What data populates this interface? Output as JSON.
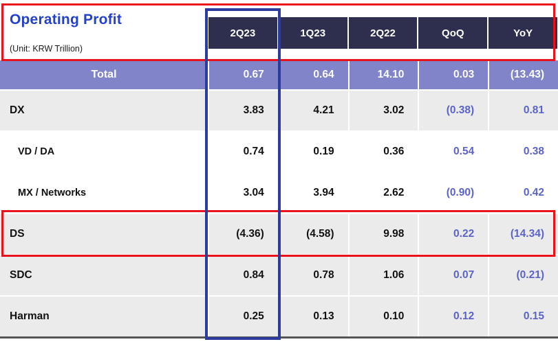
{
  "header": {
    "title": "Operating Profit",
    "unit": "(Unit: KRW Trillion)",
    "columns": [
      "2Q23",
      "1Q23",
      "2Q22",
      "QoQ",
      "YoY"
    ]
  },
  "table": {
    "rows": [
      {
        "label": "Total",
        "type": "total",
        "values": [
          "0.67",
          "0.64",
          "14.10",
          "0.03",
          "(13.43)"
        ]
      },
      {
        "label": "DX",
        "type": "division",
        "values": [
          "3.83",
          "4.21",
          "3.02",
          "(0.38)",
          "0.81"
        ]
      },
      {
        "label": "VD / DA",
        "type": "sub",
        "values": [
          "0.74",
          "0.19",
          "0.36",
          "0.54",
          "0.38"
        ]
      },
      {
        "label": "MX / Networks",
        "type": "sub",
        "values": [
          "3.04",
          "3.94",
          "2.62",
          "(0.90)",
          "0.42"
        ]
      },
      {
        "label": "DS",
        "type": "division",
        "values": [
          "(4.36)",
          "(4.58)",
          "9.98",
          "0.22",
          "(14.34)"
        ]
      },
      {
        "label": "SDC",
        "type": "division",
        "values": [
          "0.84",
          "0.78",
          "1.06",
          "0.07",
          "(0.21)"
        ]
      },
      {
        "label": "Harman",
        "type": "division",
        "values": [
          "0.25",
          "0.13",
          "0.10",
          "0.12",
          "0.15"
        ]
      }
    ]
  },
  "annotations": [
    {
      "shape": "rect",
      "color": "#e8111c",
      "target": "header-and-column-titles"
    },
    {
      "shape": "rect",
      "color": "#2c3b9e",
      "target": "2Q23-column"
    },
    {
      "shape": "rect",
      "color": "#e8111c",
      "target": "DS-row"
    }
  ],
  "colors": {
    "title_blue": "#2442c8",
    "header_bg": "#2e2e4f",
    "total_row_bg": "#8184c8",
    "division_row_bg": "#ebebeb",
    "accent_value_blue": "#5b63c8",
    "highlight_red": "#e8111c",
    "highlight_blue": "#2c3b9e"
  },
  "chart_data": {
    "type": "table",
    "title": "Operating Profit",
    "unit": "KRW Trillion",
    "columns": [
      "2Q23",
      "1Q23",
      "2Q22",
      "QoQ",
      "YoY"
    ],
    "rows": [
      {
        "label": "Total",
        "values": [
          0.67,
          0.64,
          14.1,
          0.03,
          -13.43
        ]
      },
      {
        "label": "DX",
        "values": [
          3.83,
          4.21,
          3.02,
          -0.38,
          0.81
        ]
      },
      {
        "label": "VD / DA",
        "values": [
          0.74,
          0.19,
          0.36,
          0.54,
          0.38
        ]
      },
      {
        "label": "MX / Networks",
        "values": [
          3.04,
          3.94,
          2.62,
          -0.9,
          0.42
        ]
      },
      {
        "label": "DS",
        "values": [
          -4.36,
          -4.58,
          9.98,
          0.22,
          -14.34
        ]
      },
      {
        "label": "SDC",
        "values": [
          0.84,
          0.78,
          1.06,
          0.07,
          -0.21
        ]
      },
      {
        "label": "Harman",
        "values": [
          0.25,
          0.13,
          0.1,
          0.12,
          0.15
        ]
      }
    ]
  }
}
